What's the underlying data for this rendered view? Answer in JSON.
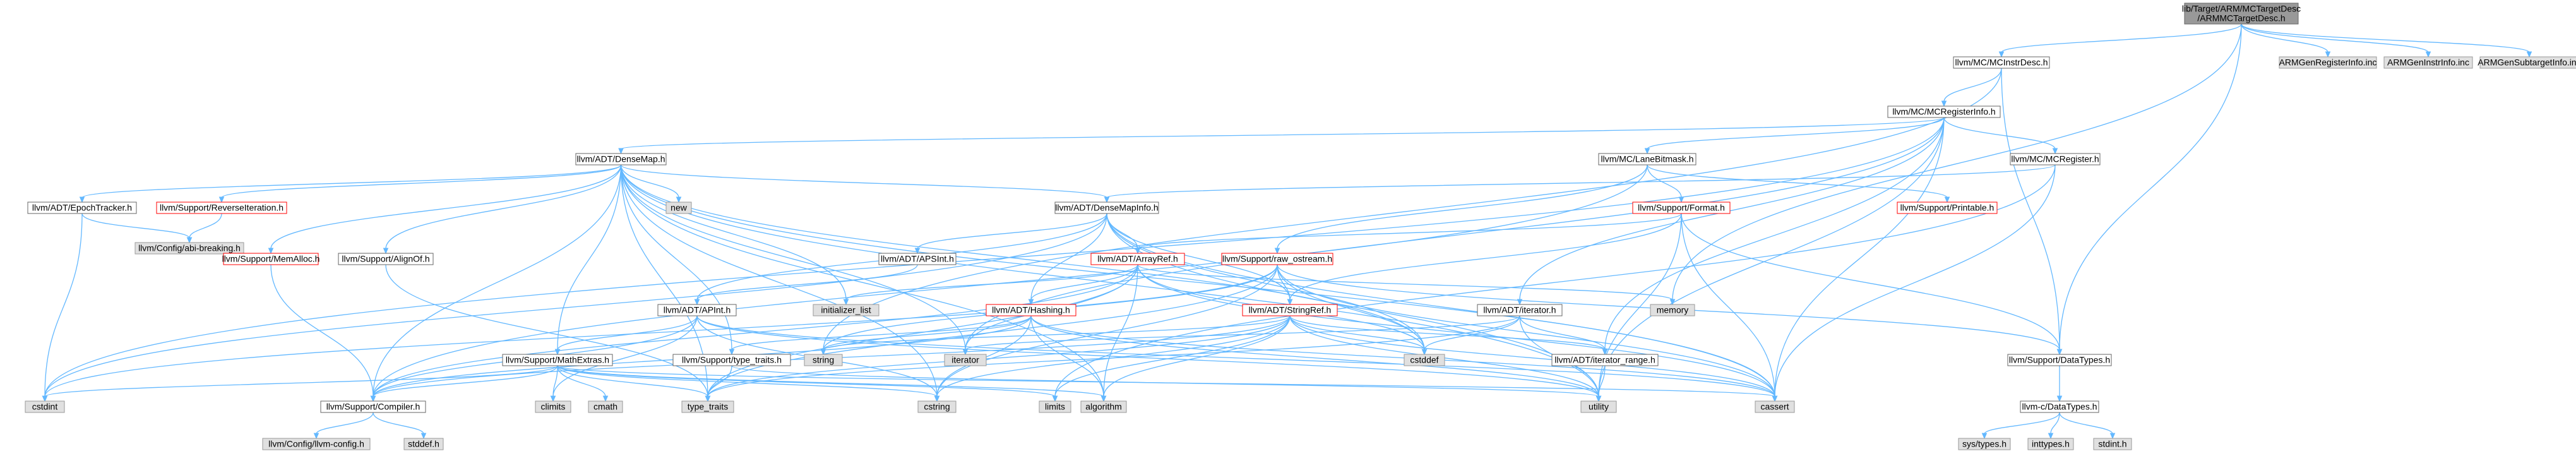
{
  "colors": {
    "edge": "#63b8ff",
    "root_fill": "#999999",
    "sys_fill": "#e0e0e0",
    "red_border": "#ff0000"
  },
  "nodes": [
    {
      "id": "root",
      "lines": [
        "lib/Target/ARM/MCTargetDesc",
        "/ARMMCTargetDesc.h"
      ],
      "kind": "root"
    },
    {
      "id": "mcinstrdesc",
      "lines": [
        "llvm/MC/MCInstrDesc.h"
      ],
      "kind": "doc"
    },
    {
      "id": "armgenreg",
      "lines": [
        "ARMGenRegisterInfo.inc"
      ],
      "kind": "sys"
    },
    {
      "id": "armgeninstr",
      "lines": [
        "ARMGenInstrInfo.inc"
      ],
      "kind": "sys"
    },
    {
      "id": "armgensub",
      "lines": [
        "ARMGenSubtargetInfo.inc"
      ],
      "kind": "sys"
    },
    {
      "id": "mcreginfo",
      "lines": [
        "llvm/MC/MCRegisterInfo.h"
      ],
      "kind": "doc"
    },
    {
      "id": "densemap",
      "lines": [
        "llvm/ADT/DenseMap.h"
      ],
      "kind": "doc"
    },
    {
      "id": "lanebitmask",
      "lines": [
        "llvm/MC/LaneBitmask.h"
      ],
      "kind": "doc"
    },
    {
      "id": "mcregister",
      "lines": [
        "llvm/MC/MCRegister.h"
      ],
      "kind": "doc"
    },
    {
      "id": "epochtracker",
      "lines": [
        "llvm/ADT/EpochTracker.h"
      ],
      "kind": "doc"
    },
    {
      "id": "reverseiter",
      "lines": [
        "llvm/Support/ReverseIteration.h"
      ],
      "kind": "red"
    },
    {
      "id": "abibreaking",
      "lines": [
        "llvm/Config/abi-breaking.h"
      ],
      "kind": "sys"
    },
    {
      "id": "new",
      "lines": [
        "new"
      ],
      "kind": "sys"
    },
    {
      "id": "densemapinfo",
      "lines": [
        "llvm/ADT/DenseMapInfo.h"
      ],
      "kind": "doc"
    },
    {
      "id": "format",
      "lines": [
        "llvm/Support/Format.h"
      ],
      "kind": "red"
    },
    {
      "id": "printable",
      "lines": [
        "llvm/Support/Printable.h"
      ],
      "kind": "red"
    },
    {
      "id": "memalloc",
      "lines": [
        "llvm/Support/MemAlloc.h"
      ],
      "kind": "red"
    },
    {
      "id": "alignof",
      "lines": [
        "llvm/Support/AlignOf.h"
      ],
      "kind": "doc"
    },
    {
      "id": "apsint",
      "lines": [
        "llvm/ADT/APSInt.h"
      ],
      "kind": "doc"
    },
    {
      "id": "arrayref",
      "lines": [
        "llvm/ADT/ArrayRef.h"
      ],
      "kind": "red"
    },
    {
      "id": "rawostream",
      "lines": [
        "llvm/Support/raw_ostream.h"
      ],
      "kind": "red"
    },
    {
      "id": "memory",
      "lines": [
        "memory"
      ],
      "kind": "sys"
    },
    {
      "id": "apint",
      "lines": [
        "llvm/ADT/APInt.h"
      ],
      "kind": "doc"
    },
    {
      "id": "initlist",
      "lines": [
        "initializer_list"
      ],
      "kind": "sys"
    },
    {
      "id": "hashing",
      "lines": [
        "llvm/ADT/Hashing.h"
      ],
      "kind": "red"
    },
    {
      "id": "stringref",
      "lines": [
        "llvm/ADT/StringRef.h"
      ],
      "kind": "red"
    },
    {
      "id": "iteratorh",
      "lines": [
        "llvm/ADT/iterator.h"
      ],
      "kind": "doc"
    },
    {
      "id": "string",
      "lines": [
        "string"
      ],
      "kind": "sys"
    },
    {
      "id": "iterator",
      "lines": [
        "iterator"
      ],
      "kind": "sys"
    },
    {
      "id": "cstddef",
      "lines": [
        "cstddef"
      ],
      "kind": "sys"
    },
    {
      "id": "mathextras",
      "lines": [
        "llvm/Support/MathExtras.h"
      ],
      "kind": "doc"
    },
    {
      "id": "typetraits",
      "lines": [
        "llvm/Support/type_traits.h"
      ],
      "kind": "doc"
    },
    {
      "id": "iterrange",
      "lines": [
        "llvm/ADT/iterator_range.h"
      ],
      "kind": "doc"
    },
    {
      "id": "datatypes",
      "lines": [
        "llvm/Support/DataTypes.h"
      ],
      "kind": "doc"
    },
    {
      "id": "cstdint",
      "lines": [
        "cstdint"
      ],
      "kind": "sys"
    },
    {
      "id": "compiler",
      "lines": [
        "llvm/Support/Compiler.h"
      ],
      "kind": "doc"
    },
    {
      "id": "climits",
      "lines": [
        "climits"
      ],
      "kind": "sys"
    },
    {
      "id": "cmath",
      "lines": [
        "cmath"
      ],
      "kind": "sys"
    },
    {
      "id": "type_traits",
      "lines": [
        "type_traits"
      ],
      "kind": "sys"
    },
    {
      "id": "cstring",
      "lines": [
        "cstring"
      ],
      "kind": "sys"
    },
    {
      "id": "limits",
      "lines": [
        "limits"
      ],
      "kind": "sys"
    },
    {
      "id": "algorithm",
      "lines": [
        "algorithm"
      ],
      "kind": "sys"
    },
    {
      "id": "utility",
      "lines": [
        "utility"
      ],
      "kind": "sys"
    },
    {
      "id": "cassert",
      "lines": [
        "cassert"
      ],
      "kind": "sys"
    },
    {
      "id": "cdatatypes",
      "lines": [
        "llvm-c/DataTypes.h"
      ],
      "kind": "doc"
    },
    {
      "id": "llvmconfig",
      "lines": [
        "llvm/Config/llvm-config.h"
      ],
      "kind": "sys"
    },
    {
      "id": "stddef",
      "lines": [
        "stddef.h"
      ],
      "kind": "sys"
    },
    {
      "id": "systypes",
      "lines": [
        "sys/types.h"
      ],
      "kind": "sys"
    },
    {
      "id": "inttypes",
      "lines": [
        "inttypes.h"
      ],
      "kind": "sys"
    },
    {
      "id": "stdint",
      "lines": [
        "stdint.h"
      ],
      "kind": "sys"
    }
  ],
  "edges": [
    [
      "root",
      "mcinstrdesc"
    ],
    [
      "root",
      "armgenreg"
    ],
    [
      "root",
      "armgeninstr"
    ],
    [
      "root",
      "armgensub"
    ],
    [
      "root",
      "datatypes"
    ],
    [
      "root",
      "memory"
    ],
    [
      "mcinstrdesc",
      "mcreginfo"
    ],
    [
      "mcinstrdesc",
      "datatypes"
    ],
    [
      "mcinstrdesc",
      "string"
    ],
    [
      "mcreginfo",
      "densemap"
    ],
    [
      "mcreginfo",
      "lanebitmask"
    ],
    [
      "mcreginfo",
      "mcregister"
    ],
    [
      "mcreginfo",
      "iteratorh"
    ],
    [
      "mcreginfo",
      "iterrange"
    ],
    [
      "mcreginfo",
      "cassert"
    ],
    [
      "mcreginfo",
      "cstdint"
    ],
    [
      "mcreginfo",
      "iterator"
    ],
    [
      "mcreginfo",
      "utility"
    ],
    [
      "densemap",
      "epochtracker"
    ],
    [
      "densemap",
      "reverseiter"
    ],
    [
      "densemap",
      "new"
    ],
    [
      "densemap",
      "densemapinfo"
    ],
    [
      "densemap",
      "memalloc"
    ],
    [
      "densemap",
      "alignof"
    ],
    [
      "densemap",
      "mathextras"
    ],
    [
      "densemap",
      "compiler"
    ],
    [
      "densemap",
      "typetraits"
    ],
    [
      "densemap",
      "initlist"
    ],
    [
      "densemap",
      "algorithm"
    ],
    [
      "densemap",
      "cassert"
    ],
    [
      "densemap",
      "cstddef"
    ],
    [
      "densemap",
      "cstring"
    ],
    [
      "densemap",
      "iterator"
    ],
    [
      "densemap",
      "type_traits"
    ],
    [
      "densemap",
      "utility"
    ],
    [
      "epochtracker",
      "abibreaking"
    ],
    [
      "epochtracker",
      "cstdint"
    ],
    [
      "reverseiter",
      "abibreaking"
    ],
    [
      "densemapinfo",
      "apint"
    ],
    [
      "densemapinfo",
      "apsint"
    ],
    [
      "densemapinfo",
      "arrayref"
    ],
    [
      "densemapinfo",
      "hashing"
    ],
    [
      "densemapinfo",
      "stringref"
    ],
    [
      "densemapinfo",
      "cassert"
    ],
    [
      "densemapinfo",
      "cstddef"
    ],
    [
      "densemapinfo",
      "cstdint"
    ],
    [
      "densemapinfo",
      "utility"
    ],
    [
      "lanebitmask",
      "compiler"
    ],
    [
      "lanebitmask",
      "format"
    ],
    [
      "lanebitmask",
      "printable"
    ],
    [
      "lanebitmask",
      "rawostream"
    ],
    [
      "mcregister",
      "densemapinfo"
    ],
    [
      "mcregister",
      "cassert"
    ],
    [
      "mcregister",
      "limits"
    ],
    [
      "format",
      "arrayref"
    ],
    [
      "format",
      "stringref"
    ],
    [
      "format",
      "datatypes"
    ],
    [
      "format",
      "cassert"
    ],
    [
      "format",
      "cstdio"
    ],
    [
      "format",
      "tuple"
    ],
    [
      "format",
      "utility"
    ],
    [
      "memalloc",
      "compiler"
    ],
    [
      "alignof",
      "type_traits"
    ],
    [
      "apsint",
      "apint"
    ],
    [
      "arrayref",
      "hashing"
    ],
    [
      "arrayref",
      "compiler"
    ],
    [
      "arrayref",
      "algorithm"
    ],
    [
      "arrayref",
      "cassert"
    ],
    [
      "arrayref",
      "cstddef"
    ],
    [
      "arrayref",
      "initlist"
    ],
    [
      "arrayref",
      "iterator"
    ],
    [
      "arrayref",
      "memory"
    ],
    [
      "arrayref",
      "type_traits"
    ],
    [
      "rawostream",
      "stringref"
    ],
    [
      "rawostream",
      "datatypes"
    ],
    [
      "rawostream",
      "cassert"
    ],
    [
      "rawostream",
      "cstddef"
    ],
    [
      "rawostream",
      "cstdint"
    ],
    [
      "rawostream",
      "cstring"
    ],
    [
      "rawostream",
      "string"
    ],
    [
      "rawostream",
      "type_traits"
    ],
    [
      "apint",
      "compiler"
    ],
    [
      "apint",
      "mathextras"
    ],
    [
      "apint",
      "cassert"
    ],
    [
      "apint",
      "climits"
    ],
    [
      "apint",
      "cstring"
    ],
    [
      "apint",
      "utility"
    ],
    [
      "hashing",
      "compiler"
    ],
    [
      "hashing",
      "typetraits"
    ],
    [
      "hashing",
      "algorithm"
    ],
    [
      "hashing",
      "cassert"
    ],
    [
      "hashing",
      "cstring"
    ],
    [
      "hashing",
      "string"
    ],
    [
      "hashing",
      "utility"
    ],
    [
      "stringref",
      "iterrange"
    ],
    [
      "stringref",
      "compiler"
    ],
    [
      "stringref",
      "algorithm"
    ],
    [
      "stringref",
      "cassert"
    ],
    [
      "stringref",
      "cstddef"
    ],
    [
      "stringref",
      "cstring"
    ],
    [
      "stringref",
      "limits"
    ],
    [
      "stringref",
      "string"
    ],
    [
      "stringref",
      "type_traits"
    ],
    [
      "stringref",
      "utility"
    ],
    [
      "iteratorh",
      "iterrange"
    ],
    [
      "iteratorh",
      "cstddef"
    ],
    [
      "iteratorh",
      "iterator"
    ],
    [
      "iteratorh",
      "type_traits"
    ],
    [
      "iteratorh",
      "utility"
    ],
    [
      "mathextras",
      "compiler"
    ],
    [
      "mathextras",
      "cassert"
    ],
    [
      "mathextras",
      "climits"
    ],
    [
      "mathextras",
      "cmath"
    ],
    [
      "mathextras",
      "cstdint"
    ],
    [
      "mathextras",
      "cstring"
    ],
    [
      "mathextras",
      "limits"
    ],
    [
      "mathextras",
      "type_traits"
    ],
    [
      "mathextras",
      "algorithm"
    ],
    [
      "typetraits",
      "type_traits"
    ],
    [
      "typetraits",
      "utility"
    ],
    [
      "iterrange",
      "utility"
    ],
    [
      "datatypes",
      "cdatatypes"
    ],
    [
      "compiler",
      "llvmconfig"
    ],
    [
      "compiler",
      "stddef"
    ],
    [
      "cdatatypes",
      "systypes"
    ],
    [
      "cdatatypes",
      "inttypes"
    ],
    [
      "cdatatypes",
      "stdint"
    ]
  ]
}
